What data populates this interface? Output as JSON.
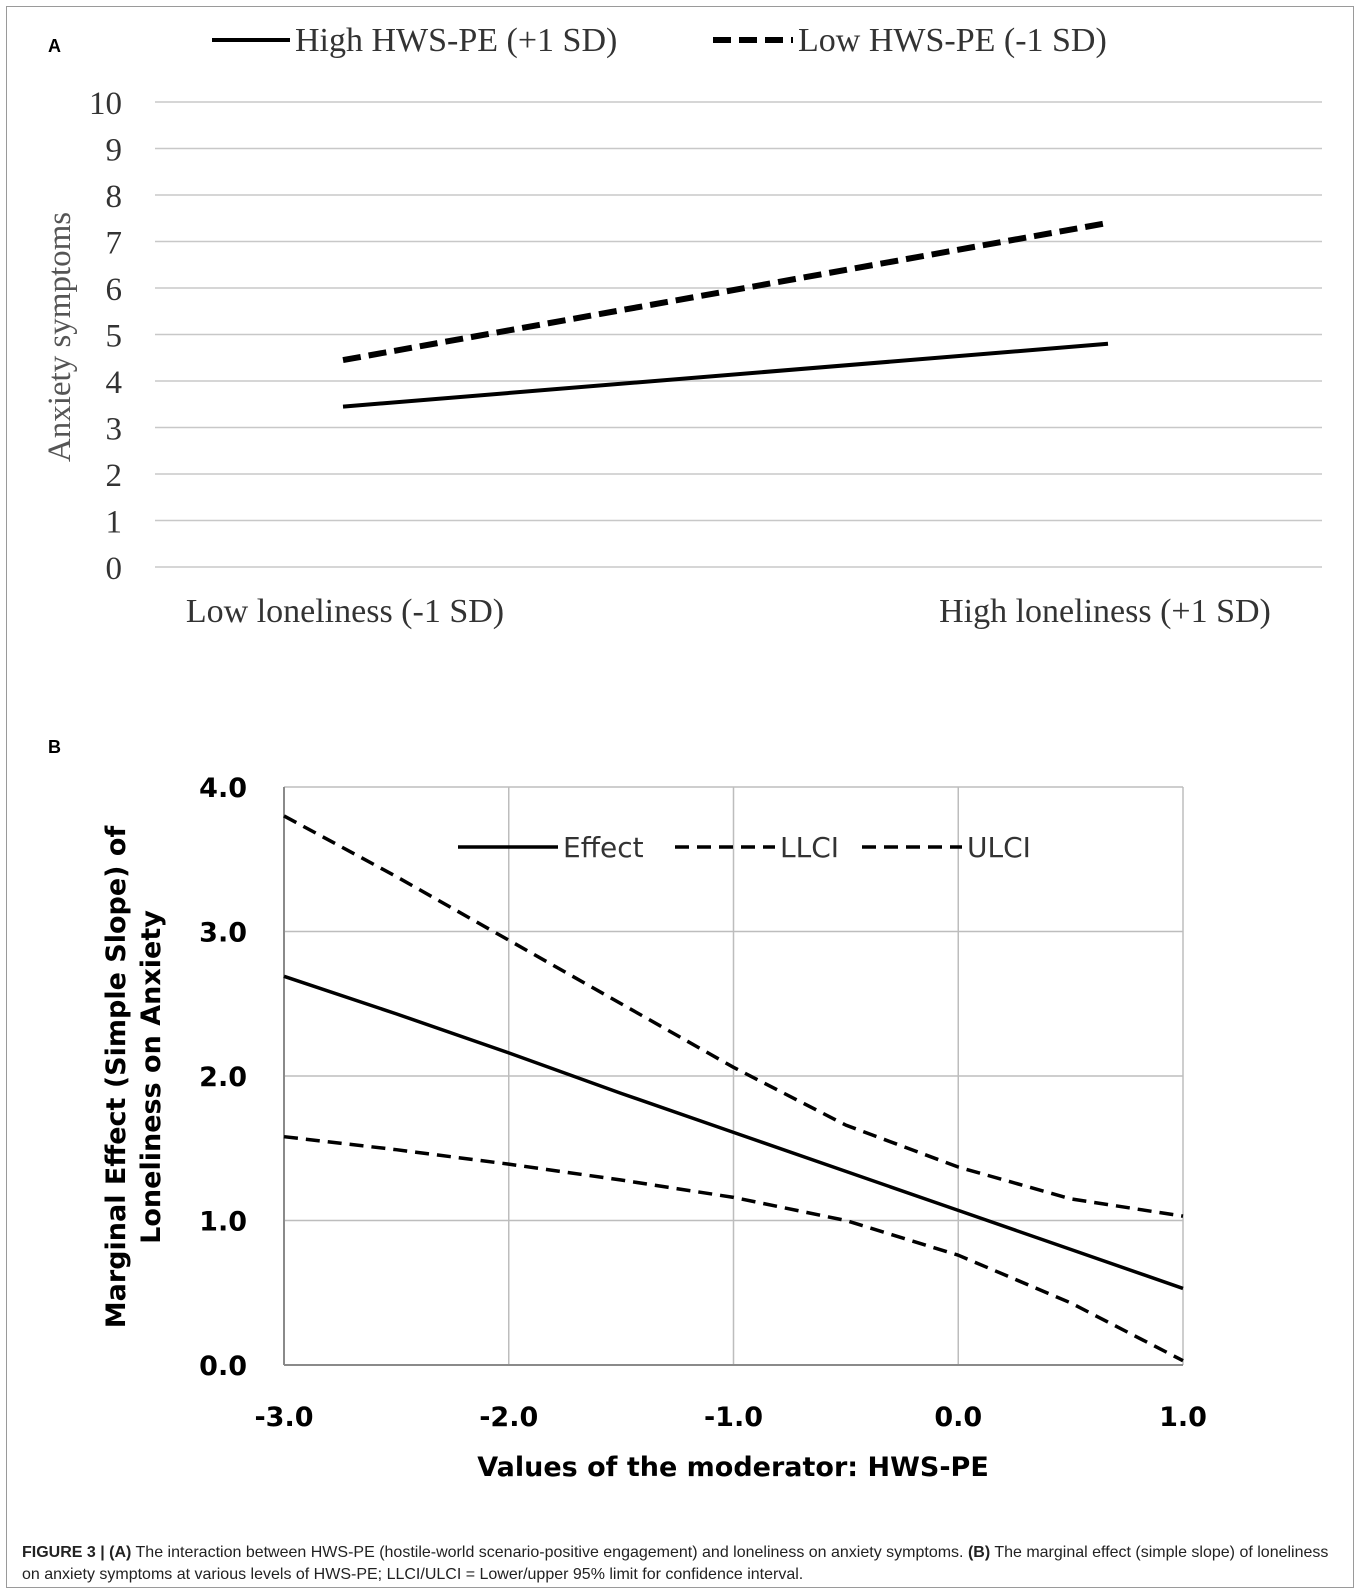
{
  "panel_a_label": "A",
  "panel_b_label": "B",
  "chart_data": [
    {
      "type": "line",
      "panel": "A",
      "title": "",
      "ylabel": "Anxiety symptoms",
      "xlabel": "",
      "categories": [
        "Low loneliness (-1 SD)",
        "High loneliness (+1 SD)"
      ],
      "ylim": [
        0,
        10
      ],
      "yticks": [
        "0",
        "1",
        "2",
        "3",
        "4",
        "5",
        "6",
        "7",
        "8",
        "9",
        "10"
      ],
      "grid": "horizontal",
      "legend_position": "top",
      "series": [
        {
          "name": "High HWS-PE (+1 SD)",
          "style": "solid",
          "values": [
            3.45,
            4.8
          ]
        },
        {
          "name": "Low HWS-PE (-1 SD)",
          "style": "dashed",
          "values": [
            4.45,
            7.4
          ]
        }
      ]
    },
    {
      "type": "line",
      "panel": "B",
      "title": "",
      "ylabel_line1": "Marginal  Effect (Simple Slope) of",
      "ylabel_line2": "Loneliness on Anxiety",
      "xlabel": "Values of the moderator: HWS-PE",
      "xlim": [
        -3.0,
        1.0
      ],
      "ylim": [
        0.0,
        4.0
      ],
      "xticks": [
        "-3.0",
        "-2.0",
        "-1.0",
        "0.0",
        "1.0"
      ],
      "yticks": [
        "0.0",
        "1.0",
        "2.0",
        "3.0",
        "4.0"
      ],
      "grid": "both",
      "legend_position": "top-center inside",
      "x": [
        -3.0,
        -2.5,
        -2.0,
        -1.5,
        -1.0,
        -0.5,
        0.0,
        0.5,
        1.0
      ],
      "series": [
        {
          "name": "Effect",
          "style": "solid",
          "values": [
            2.69,
            2.43,
            2.16,
            1.88,
            1.61,
            1.34,
            1.07,
            0.8,
            0.53
          ]
        },
        {
          "name": "LLCI",
          "style": "dashed",
          "values": [
            1.58,
            1.49,
            1.39,
            1.28,
            1.16,
            1.0,
            0.76,
            0.43,
            0.03
          ]
        },
        {
          "name": "ULCI",
          "style": "dashed",
          "values": [
            3.8,
            3.38,
            2.94,
            2.5,
            2.06,
            1.66,
            1.37,
            1.15,
            1.03
          ]
        }
      ]
    }
  ],
  "caption": {
    "figure_label": "FIGURE 3 | ",
    "a_tag": "(A)",
    "a_text": " The interaction between HWS-PE (hostile-world scenario-positive engagement) and loneliness on anxiety symptoms. ",
    "b_tag": "(B)",
    "b_text": " The marginal effect (simple slope) of loneliness on anxiety symptoms at various levels of HWS-PE; LLCI/ULCI = Lower/upper 95% limit for confidence interval."
  }
}
